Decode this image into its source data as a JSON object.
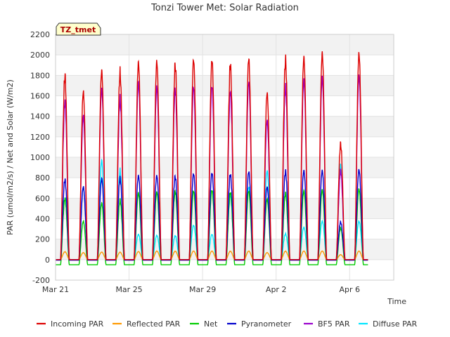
{
  "chart_data": {
    "type": "line",
    "title": "Tonzi Tower Met: Solar Radiation",
    "xlabel": "Time",
    "ylabel": "PAR (umol/m2/s) / Net and Solar (W/m2)",
    "badge": "TZ_tmet",
    "ylim": [
      -200,
      2200
    ],
    "yticks": [
      -200,
      0,
      200,
      400,
      600,
      800,
      1000,
      1200,
      1400,
      1600,
      1800,
      2000,
      2200
    ],
    "xlim": [
      0,
      18.4
    ],
    "xticks": [
      {
        "value": 0,
        "label": "Mar 21"
      },
      {
        "value": 4,
        "label": "Mar 25"
      },
      {
        "value": 8,
        "label": "Mar 29"
      },
      {
        "value": 12,
        "label": "Apr 2"
      },
      {
        "value": 16,
        "label": "Apr 6"
      }
    ],
    "grid": true,
    "legend_position": "bottom",
    "days": 17,
    "series": [
      {
        "name": "Incoming PAR",
        "color": "#dd0000",
        "peaks": [
          1860,
          1660,
          1870,
          1890,
          1950,
          1960,
          1970,
          1980,
          1980,
          1970,
          1990,
          1650,
          2020,
          2000,
          2040,
          1170,
          2040
        ]
      },
      {
        "name": "Reflected PAR",
        "color": "#ff9900",
        "peaks": [
          80,
          70,
          75,
          75,
          80,
          85,
          85,
          85,
          85,
          85,
          85,
          70,
          85,
          85,
          85,
          50,
          85
        ]
      },
      {
        "name": "Net",
        "color": "#00cc00",
        "peaks": [
          620,
          380,
          560,
          600,
          660,
          670,
          690,
          680,
          690,
          680,
          680,
          600,
          670,
          680,
          690,
          320,
          700
        ],
        "night": -50
      },
      {
        "name": "Pyranometer",
        "color": "#0000cc",
        "peaks": [
          810,
          720,
          800,
          820,
          830,
          830,
          840,
          850,
          860,
          860,
          870,
          720,
          890,
          880,
          880,
          380,
          890
        ],
        "night": -5
      },
      {
        "name": "BF5 PAR",
        "color": "#9900cc",
        "peaks": [
          1600,
          1420,
          1690,
          1620,
          1750,
          1710,
          1720,
          1710,
          1720,
          1700,
          1760,
          1380,
          1740,
          1780,
          1800,
          900,
          1820
        ]
      },
      {
        "name": "Diffuse PAR",
        "color": "#00e5ff",
        "peaks": [
          620,
          720,
          980,
          900,
          250,
          240,
          240,
          340,
          250,
          650,
          720,
          880,
          260,
          320,
          380,
          950,
          380
        ]
      }
    ]
  }
}
